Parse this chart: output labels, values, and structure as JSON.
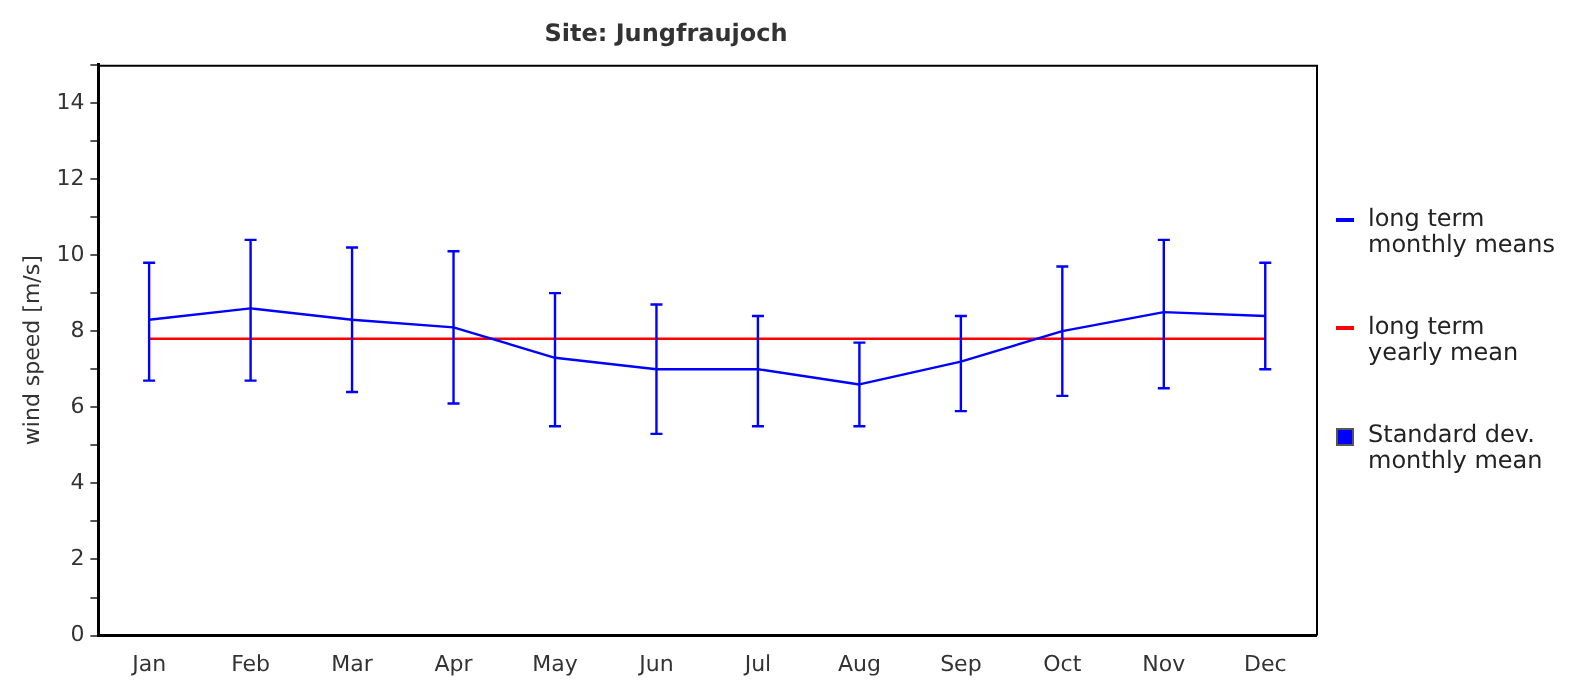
{
  "chart_data": {
    "type": "line",
    "title": "Site: Jungfraujoch",
    "ylabel": "wind speed [m/s]",
    "categories": [
      "Jan",
      "Feb",
      "Mar",
      "Apr",
      "May",
      "Jun",
      "Jul",
      "Aug",
      "Sep",
      "Oct",
      "Nov",
      "Dec"
    ],
    "series": [
      {
        "name": "long term\nmonthly means",
        "color": "#0000ff",
        "values": [
          8.3,
          8.6,
          8.3,
          8.1,
          7.3,
          7.0,
          7.0,
          6.6,
          7.2,
          8.0,
          8.5,
          8.4
        ],
        "errors": [
          [
            6.7,
            9.8
          ],
          [
            6.7,
            10.4
          ],
          [
            6.4,
            10.2
          ],
          [
            6.1,
            10.1
          ],
          [
            5.5,
            9.0
          ],
          [
            5.3,
            8.7
          ],
          [
            5.5,
            8.4
          ],
          [
            5.5,
            7.7
          ],
          [
            5.9,
            8.4
          ],
          [
            6.3,
            9.7
          ],
          [
            6.5,
            10.4
          ],
          [
            7.0,
            9.8
          ]
        ]
      },
      {
        "name": "long term\nyearly mean",
        "color": "#ff0000",
        "values": [
          7.8,
          7.8,
          7.8,
          7.8,
          7.8,
          7.8,
          7.8,
          7.8,
          7.8,
          7.8,
          7.8,
          7.8
        ]
      }
    ],
    "annotations": [
      "Standard dev.\nmonthly mean"
    ],
    "ylim": [
      0,
      15
    ],
    "yticks": [
      0,
      {
        "value": 1,
        "label": null
      },
      2,
      {
        "value": 3,
        "label": null
      },
      4,
      {
        "value": 5,
        "label": null
      },
      6,
      {
        "value": 7,
        "label": null
      },
      8,
      {
        "value": 9,
        "label": null
      },
      10,
      {
        "value": 11,
        "label": null
      },
      12,
      {
        "value": 13,
        "label": null
      },
      14,
      {
        "value": 15,
        "label": null
      }
    ],
    "grid": false,
    "legend": "right",
    "marker": "none",
    "line_style": "solid"
  }
}
